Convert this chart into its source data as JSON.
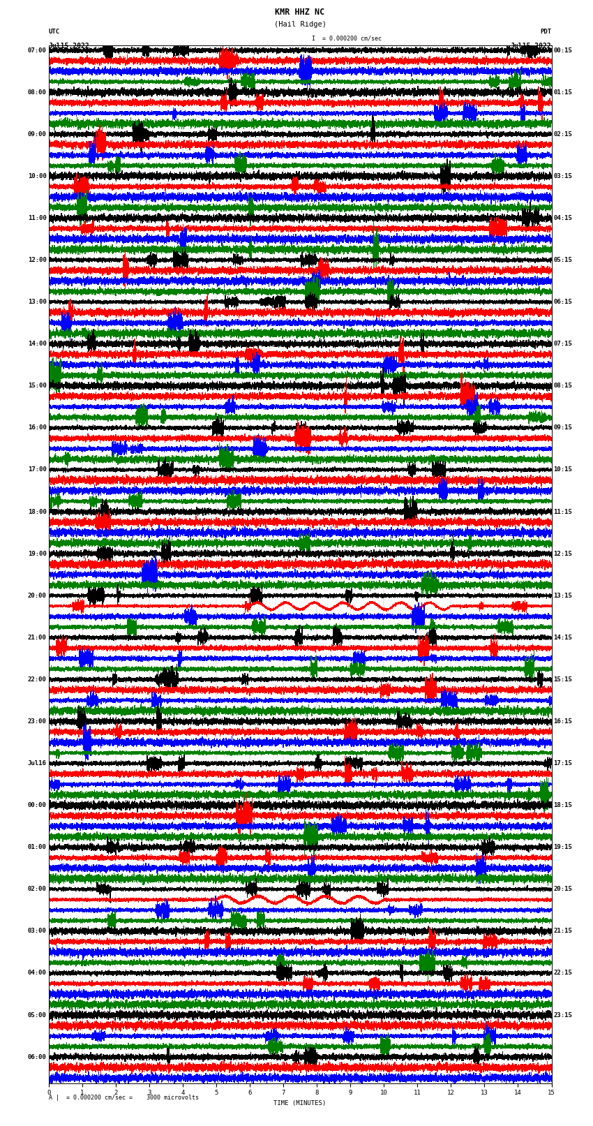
{
  "title_line1": "KMR HHZ NC",
  "title_line2": "(Hail Ridge)",
  "scale_label": "= 0.000200 cm/sec",
  "left_header": "UTC",
  "right_header": "PDT",
  "left_date": "Jul15,2022",
  "right_date": "Jul15,2022",
  "xlabel": "TIME (MINUTES)",
  "bottom_note": "A |  = 0.000200 cm/sec =    3000 microvolts",
  "time_min": 0,
  "time_max": 15,
  "xticks": [
    0,
    1,
    2,
    3,
    4,
    5,
    6,
    7,
    8,
    9,
    10,
    11,
    12,
    13,
    14,
    15
  ],
  "colors": [
    "black",
    "red",
    "blue",
    "green"
  ],
  "left_times": [
    "07:00",
    "",
    "",
    "",
    "08:00",
    "",
    "",
    "",
    "09:00",
    "",
    "",
    "",
    "10:00",
    "",
    "",
    "",
    "11:00",
    "",
    "",
    "",
    "12:00",
    "",
    "",
    "",
    "13:00",
    "",
    "",
    "",
    "14:00",
    "",
    "",
    "",
    "15:00",
    "",
    "",
    "",
    "16:00",
    "",
    "",
    "",
    "17:00",
    "",
    "",
    "",
    "18:00",
    "",
    "",
    "",
    "19:00",
    "",
    "",
    "",
    "20:00",
    "",
    "",
    "",
    "21:00",
    "",
    "",
    "",
    "22:00",
    "",
    "",
    "",
    "23:00",
    "",
    "",
    "",
    "Jul16",
    "",
    "",
    "",
    "00:00",
    "",
    "",
    "",
    "01:00",
    "",
    "",
    "",
    "02:00",
    "",
    "",
    "",
    "03:00",
    "",
    "",
    "",
    "04:00",
    "",
    "",
    "",
    "05:00",
    "",
    "",
    "",
    "06:00",
    "",
    ""
  ],
  "right_times": [
    "00:15",
    "",
    "",
    "",
    "01:15",
    "",
    "",
    "",
    "02:15",
    "",
    "",
    "",
    "03:15",
    "",
    "",
    "",
    "04:15",
    "",
    "",
    "",
    "05:15",
    "",
    "",
    "",
    "06:15",
    "",
    "",
    "",
    "07:15",
    "",
    "",
    "",
    "08:15",
    "",
    "",
    "",
    "09:15",
    "",
    "",
    "",
    "10:15",
    "",
    "",
    "",
    "11:15",
    "",
    "",
    "",
    "12:15",
    "",
    "",
    "",
    "13:15",
    "",
    "",
    "",
    "14:15",
    "",
    "",
    "",
    "15:15",
    "",
    "",
    "",
    "16:15",
    "",
    "",
    "",
    "17:15",
    "",
    "",
    "",
    "18:15",
    "",
    "",
    "",
    "19:15",
    "",
    "",
    "",
    "20:15",
    "",
    "",
    "",
    "21:15",
    "",
    "",
    "",
    "22:15",
    "",
    "",
    "",
    "23:15",
    "",
    "",
    "",
    "",
    "",
    ""
  ],
  "n_rows": 99,
  "n_cols": 9000,
  "background_color": "#ffffff",
  "trace_linewidth": 0.35,
  "font_size_ticks": 6.5,
  "font_size_title": 8.5,
  "font_size_header": 6.5,
  "grid_color": "#aaaaaa",
  "grid_lw": 0.3,
  "special_row": 53,
  "special_row_2": 81
}
